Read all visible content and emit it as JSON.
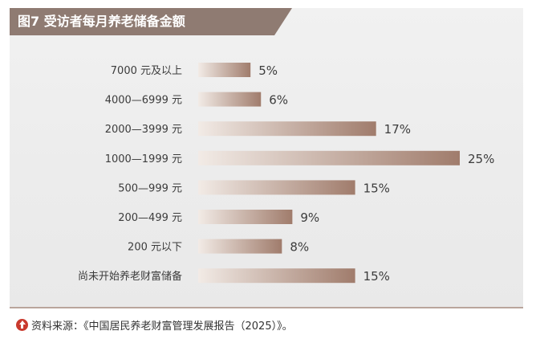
{
  "chart_data": {
    "type": "bar",
    "orientation": "horizontal",
    "title": "图7   受访者每月养老储备金额",
    "categories": [
      "7000 元及以上",
      "4000—6999 元",
      "2000—3999 元",
      "1000—1999 元",
      "500—999 元",
      "200—499 元",
      "200 元以下",
      "尚未开始养老财富储备"
    ],
    "values": [
      5,
      6,
      17,
      25,
      15,
      9,
      8,
      15
    ],
    "value_labels": [
      "5%",
      "6%",
      "17%",
      "25%",
      "15%",
      "9%",
      "8%",
      "15%"
    ],
    "value_unit": "%",
    "xlim": [
      0,
      25
    ],
    "grid": false,
    "legend": "none",
    "bar_color_start": "#f2ebe6",
    "bar_color_end": "#a07c6c"
  },
  "title_bar_color": "#8f7b72",
  "source": {
    "icon": "upload-arrow-icon",
    "text": "资料来源：《中国居民养老财富管理发展报告（2025）》。"
  }
}
